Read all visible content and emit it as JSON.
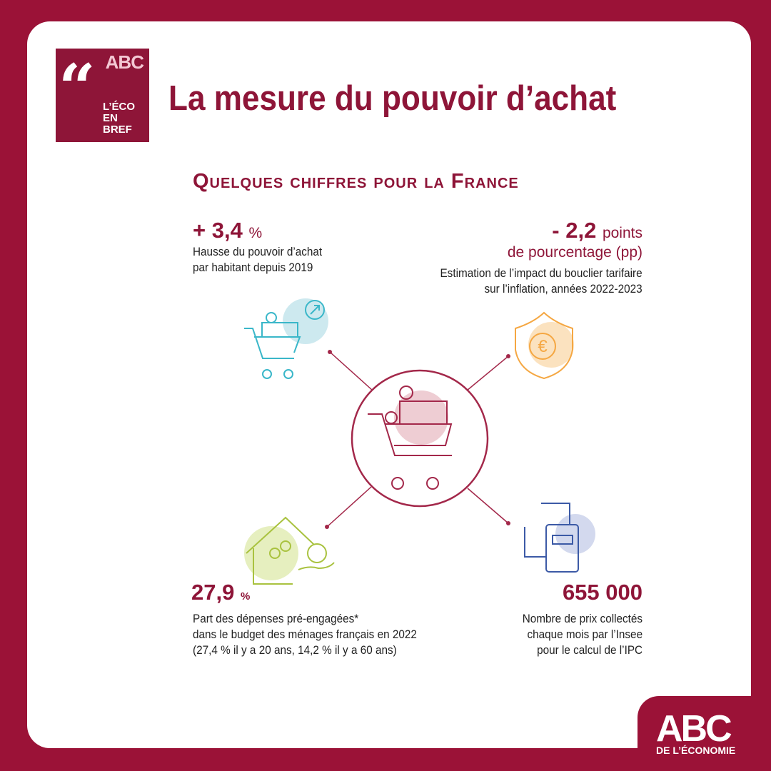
{
  "logo": {
    "brand": "ABC",
    "lines": [
      "L’ÉCO",
      "EN",
      "BREF"
    ]
  },
  "header": {
    "title": "La mesure du pouvoir d’achat"
  },
  "section_title": "Quelques chiffres pour la France",
  "stats": [
    {
      "value": "+ 3,4",
      "unit": "%",
      "description": [
        "Hausse du pouvoir d’achat",
        "par habitant depuis 2019"
      ]
    },
    {
      "value": "- 2,2",
      "unit": "points",
      "unit_line2": "de pourcentage (pp)",
      "description": [
        "Estimation de l’impact du bouclier tarifaire",
        "sur l’inflation, années 2022-2023"
      ]
    },
    {
      "value": "27,9",
      "unit": "%",
      "description": [
        "Part des dépenses pré-engagées*",
        "dans le budget des ménages français en 2022",
        "(27,4 % il y a 20 ans, 14,2 % il y a 60 ans)"
      ]
    },
    {
      "value": "655 000",
      "description": [
        "Nombre de prix collectés",
        "chaque mois par l’Insee",
        "pour le calcul de l’IPC"
      ]
    }
  ],
  "footer": {
    "brand": "ABC",
    "tagline": "DE L’ÉCONOMIE"
  }
}
